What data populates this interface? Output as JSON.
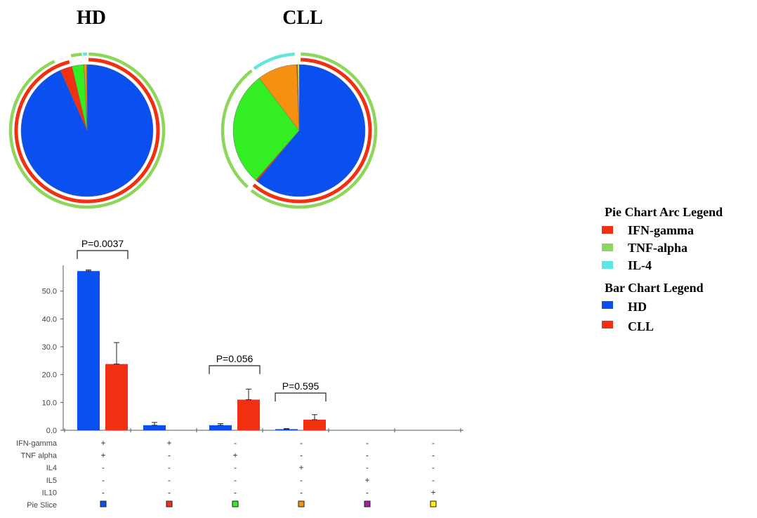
{
  "pies": [
    {
      "title": "HD",
      "slices": [
        {
          "key": "if_tnf",
          "value": 57.2,
          "color": "#0a4ff0"
        },
        {
          "key": "if_only",
          "value": 1.8,
          "color": "#f03010"
        },
        {
          "key": "tnf_only",
          "value": 1.8,
          "color": "#33ee22"
        },
        {
          "key": "il4_only",
          "value": 0.4,
          "color": "#f59010"
        },
        {
          "key": "il5_only",
          "value": 0.03,
          "color": "#a020a0"
        },
        {
          "key": "il10_only",
          "value": 0.03,
          "color": "#ffee10"
        }
      ]
    },
    {
      "title": "CLL",
      "slices": [
        {
          "key": "if_tnf",
          "value": 23.8,
          "color": "#0a4ff0"
        },
        {
          "key": "if_only",
          "value": 0.15,
          "color": "#f03010"
        },
        {
          "key": "tnf_only",
          "value": 11.0,
          "color": "#33ee22"
        },
        {
          "key": "il4_only",
          "value": 3.8,
          "color": "#f59010"
        },
        {
          "key": "il5_only",
          "value": 0.08,
          "color": "#a020a0"
        },
        {
          "key": "il10_only",
          "value": 0.15,
          "color": "#ffee10"
        }
      ]
    }
  ],
  "arc_legend": {
    "title": "Pie Chart Arc Legend",
    "items": [
      {
        "label": "IFN-gamma",
        "color": "#f03010"
      },
      {
        "label": "TNF-alpha",
        "color": "#8ed65a"
      },
      {
        "label": "IL-4",
        "color": "#5ee6df"
      }
    ]
  },
  "bar_legend": {
    "title": "Bar Chart Legend",
    "items": [
      {
        "label": "HD",
        "color": "#0a4ff0"
      },
      {
        "label": "CLL",
        "color": "#f03010"
      }
    ]
  },
  "chart_data": {
    "type": "bar",
    "ylim": [
      0,
      60
    ],
    "yticks": [
      "0.0",
      "10.0",
      "20.0",
      "30.0",
      "40.0",
      "50.0"
    ],
    "ytick_values": [
      0,
      10,
      20,
      30,
      40,
      50
    ],
    "series": [
      {
        "name": "HD",
        "color": "#0a4ff0",
        "values": [
          57.2,
          1.8,
          1.8,
          0.4,
          0,
          0
        ],
        "errors": [
          0.4,
          1.0,
          0.6,
          0.2,
          0,
          0
        ]
      },
      {
        "name": "CLL",
        "color": "#f03010",
        "values": [
          23.8,
          0,
          11.0,
          3.8,
          0,
          0
        ],
        "errors": [
          7.7,
          0,
          3.8,
          1.8,
          0,
          0
        ]
      }
    ],
    "combination_rows": [
      {
        "label": "IFN-gamma",
        "marks": [
          "+",
          "+",
          "-",
          "-",
          "-",
          "-"
        ]
      },
      {
        "label": "TNF alpha",
        "marks": [
          "+",
          "-",
          "+",
          "-",
          "-",
          "-"
        ]
      },
      {
        "label": "IL4",
        "marks": [
          "-",
          "-",
          "-",
          "+",
          "-",
          "-"
        ]
      },
      {
        "label": "IL5",
        "marks": [
          "-",
          "-",
          "-",
          "-",
          "+",
          "-"
        ]
      },
      {
        "label": "IL10",
        "marks": [
          "-",
          "-",
          "-",
          "-",
          "-",
          "+"
        ]
      }
    ],
    "pie_slice_row": {
      "label": "Pie Slice",
      "colors": [
        "#0a4ff0",
        "#f03010",
        "#33ee22",
        "#f59010",
        "#a020a0",
        "#ffee10"
      ]
    },
    "annotations": [
      {
        "text": "P=0.0037",
        "group": 0
      },
      {
        "text": "P=0.056",
        "group": 2
      },
      {
        "text": "P=0.595",
        "group": 3
      }
    ]
  }
}
